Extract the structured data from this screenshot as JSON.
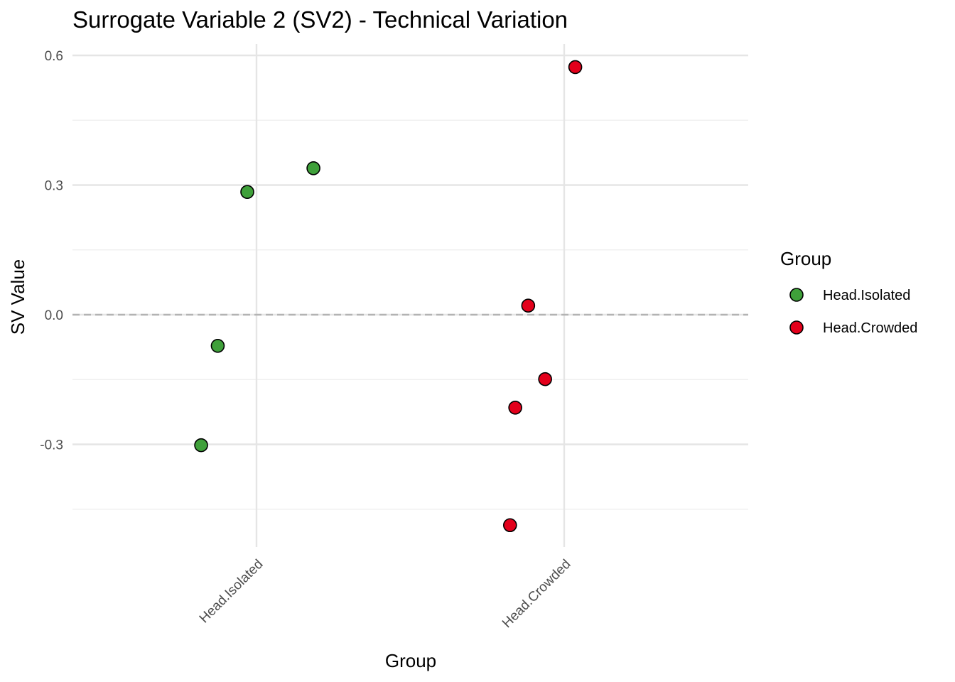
{
  "chart_data": {
    "type": "scatter",
    "title": "Surrogate Variable 2 (SV2) - Technical Variation",
    "xlabel": "Group",
    "ylabel": "SV Value",
    "categories": [
      "Head.Isolated",
      "Head.Crowded"
    ],
    "y_ticks": [
      -0.3,
      0.0,
      0.3,
      0.6
    ],
    "y_tick_labels": [
      "-0.3",
      "0.0",
      "0.3",
      "0.6"
    ],
    "ylim": [
      -0.52,
      0.605
    ],
    "reference_line": {
      "y": 0.0,
      "style": "dashed"
    },
    "legend": {
      "title": "Group",
      "position": "right",
      "entries": [
        {
          "label": "Head.Isolated",
          "color": "#3fa03a"
        },
        {
          "label": "Head.Crowded",
          "color": "#e3001b"
        }
      ]
    },
    "series": [
      {
        "name": "Head.Isolated",
        "color": "#3fa03a",
        "points": [
          {
            "jitter": -0.18,
            "y": -0.302
          },
          {
            "jitter": -0.126,
            "y": -0.072
          },
          {
            "jitter": -0.03,
            "y": 0.284
          },
          {
            "jitter": 0.185,
            "y": 0.339
          }
        ]
      },
      {
        "name": "Head.Crowded",
        "color": "#e3001b",
        "points": [
          {
            "jitter": -0.176,
            "y": -0.487
          },
          {
            "jitter": -0.159,
            "y": -0.215
          },
          {
            "jitter": -0.117,
            "y": 0.021
          },
          {
            "jitter": -0.062,
            "y": -0.149
          },
          {
            "jitter": 0.036,
            "y": 0.573
          }
        ]
      }
    ]
  }
}
